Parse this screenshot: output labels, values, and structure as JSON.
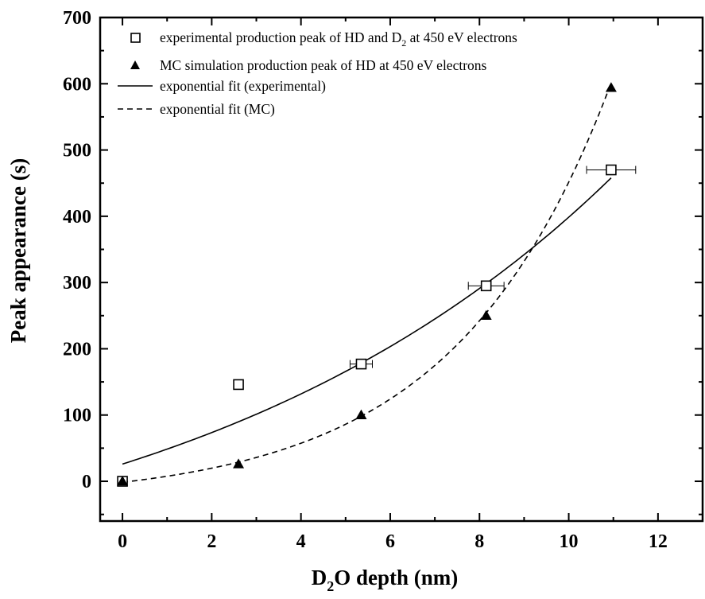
{
  "chart_data": {
    "type": "scatter",
    "xlabel": {
      "pre": "D",
      "sub": "2",
      "post": "O depth (nm)"
    },
    "ylabel": "Peak appearance (s)",
    "xlim": [
      -0.5,
      13
    ],
    "ylim": [
      -60,
      700
    ],
    "xticks": [
      0,
      2,
      4,
      6,
      8,
      10,
      12
    ],
    "yticks": [
      0,
      100,
      200,
      300,
      400,
      500,
      600,
      700
    ],
    "grid": false,
    "legend_position": "top-left",
    "series": [
      {
        "name": "experimental production peak of HD and D2 at 450 eV electrons",
        "legend": {
          "pre": "experimental production peak of HD and D",
          "sub": "2",
          "post": " at 450 eV electrons"
        },
        "marker": "open-square",
        "x": [
          0,
          2.6,
          5.35,
          8.15,
          10.95
        ],
        "y": [
          0,
          146,
          177,
          295,
          470
        ],
        "xerr": [
          0.05,
          0.08,
          0.25,
          0.4,
          0.55
        ]
      },
      {
        "name": "MC simulation production peak of HD at 450 eV electrons",
        "legend": {
          "pre": "MC simulation production peak of HD at 450 eV electrons",
          "sub": "",
          "post": ""
        },
        "marker": "filled-triangle",
        "x": [
          0,
          2.6,
          5.35,
          8.15,
          10.95
        ],
        "y": [
          0,
          26,
          100,
          250,
          594
        ]
      },
      {
        "name": "exponential fit (experimental)",
        "legend": {
          "pre": "exponential fit (experimental)",
          "sub": "",
          "post": ""
        },
        "style": "solid",
        "fit": {
          "model": "y0 + A*exp(x/t)",
          "y0": -184,
          "A": 210,
          "t": 9.8
        },
        "x_range": [
          0,
          10.95
        ]
      },
      {
        "name": "exponential fit (MC)",
        "legend": {
          "pre": "exponential fit (MC)",
          "sub": "",
          "post": ""
        },
        "style": "dashed",
        "fit": {
          "model": "y0 + A*exp(x/t)",
          "y0": -29.1,
          "A": 27.6,
          "t": 3.5
        },
        "x_range": [
          0,
          10.95
        ]
      }
    ]
  }
}
